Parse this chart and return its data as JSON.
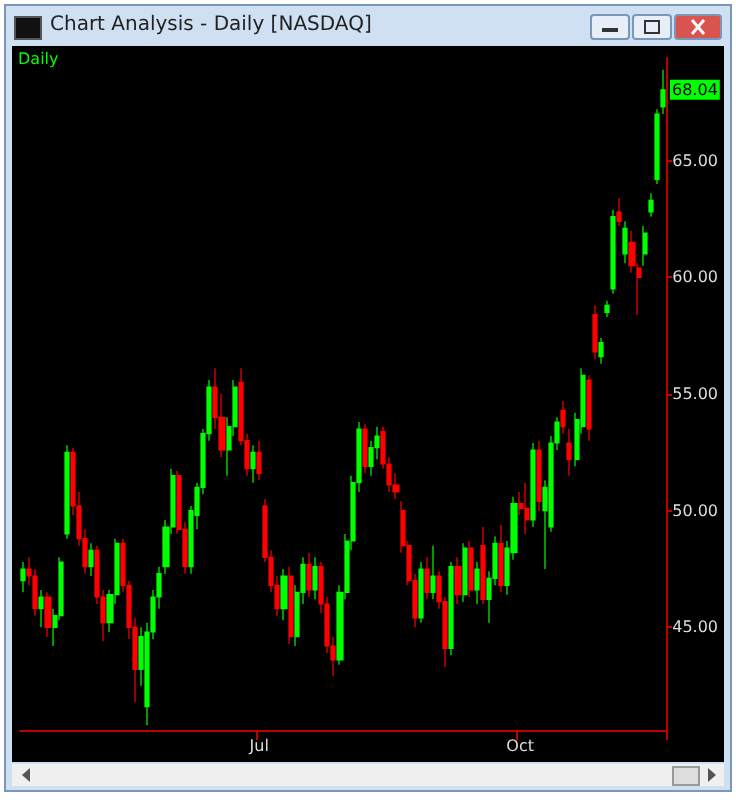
{
  "chart_data": {
    "type": "candlestick",
    "title": "Chart Analysis - Daily [NASDAQ]",
    "subtitle": "Daily",
    "colors": [
      "#00ff00",
      "#ff0000",
      "#ff0000",
      "#00ff00",
      "#ff0000",
      "#00ff00",
      "#00ff00",
      "#00ff00",
      "#ff0000",
      "#ff0000",
      "#ff0000",
      "#00ff00",
      "#ff0000",
      "#ff0000",
      "#00ff00",
      "#00ff00",
      "#ff0000",
      "#ff0000",
      "#ff0000",
      "#00ff00",
      "#00ff00",
      "#00ff00",
      "#00ff00",
      "#00ff00",
      "#00ff00",
      "#ff0000",
      "#ff0000",
      "#00ff00",
      "#00ff00",
      "#00ff00",
      "#00ff00",
      "#ff0000",
      "#ff0000",
      "#00ff00",
      "#00ff00",
      "#ff0000",
      "#ff0000",
      "#00ff00",
      "#ff0000",
      "#ff0000",
      "#ff0000",
      "#ff0000",
      "#00ff00",
      "#ff0000",
      "#00ff00",
      "#00ff00",
      "#ff0000",
      "#00ff00",
      "#ff0000",
      "#ff0000",
      "#ff0000",
      "#00ff00",
      "#00ff00",
      "#00ff00",
      "#00ff00",
      "#ff0000",
      "#00ff00",
      "#00ff00",
      "#ff0000",
      "#ff0000",
      "#ff0000",
      "#ff0000",
      "#ff0000",
      "#ff0000",
      "#00ff00",
      "#ff0000",
      "#00ff00",
      "#ff0000",
      "#ff0000",
      "#00ff00",
      "#ff0000",
      "#00ff00",
      "#ff0000",
      "#00ff00",
      "#ff0000",
      "#00ff00",
      "#00ff00",
      "#ff0000",
      "#00ff00",
      "#00ff00",
      "#ff0000",
      "#ff0000",
      "#00ff00",
      "#ff0000",
      "#00ff00",
      "#00ff00",
      "#00ff00",
      "#ff0000",
      "#ff0000",
      "#00ff00",
      "#00ff00",
      "#ff0000",
      "#ff0000",
      "#00ff00",
      "#00ff00",
      "#00ff00",
      "#ff0000",
      "#00ff00",
      "#ff0000",
      "#ff0000",
      "#00ff00",
      "#00ff00",
      "#00ff00",
      "#00ff00"
    ],
    "categories": [
      null,
      null,
      null,
      null,
      null,
      null,
      null,
      null,
      null,
      null,
      null,
      null,
      null,
      null,
      null,
      null,
      null,
      null,
      null,
      null,
      null,
      null,
      null,
      null,
      null,
      null,
      null,
      null,
      null,
      null,
      null,
      null,
      null,
      null,
      null,
      null,
      null,
      null,
      "Jul",
      null,
      null,
      null,
      null,
      null,
      null,
      null,
      null,
      null,
      null,
      null,
      null,
      null,
      null,
      null,
      null,
      null,
      null,
      null,
      null,
      null,
      null,
      null,
      null,
      null,
      null,
      null,
      null,
      null,
      null,
      null,
      null,
      null,
      null,
      null,
      null,
      null,
      null,
      null,
      null,
      null,
      "Oct",
      null,
      null,
      null,
      null,
      null,
      null,
      null,
      null,
      null,
      null,
      null,
      null,
      null,
      null,
      null,
      null,
      null,
      null,
      null,
      null,
      null,
      null,
      null
    ],
    "ohlc": [
      [
        47.0,
        47.8,
        46.5,
        47.5
      ],
      [
        47.5,
        48.0,
        46.8,
        47.2
      ],
      [
        47.2,
        47.5,
        45.5,
        45.8
      ],
      [
        45.8,
        46.6,
        45.0,
        46.3
      ],
      [
        46.3,
        46.5,
        44.6,
        45.0
      ],
      [
        45.0,
        45.8,
        44.2,
        45.5
      ],
      [
        45.5,
        48.0,
        45.3,
        47.8
      ],
      [
        49.0,
        52.8,
        48.8,
        52.5
      ],
      [
        52.5,
        52.7,
        49.8,
        50.2
      ],
      [
        50.2,
        50.8,
        48.5,
        48.8
      ],
      [
        48.8,
        49.2,
        47.3,
        47.6
      ],
      [
        47.6,
        48.6,
        47.2,
        48.3
      ],
      [
        48.3,
        48.5,
        46.0,
        46.3
      ],
      [
        46.3,
        46.6,
        44.4,
        45.2
      ],
      [
        45.2,
        46.6,
        44.8,
        46.4
      ],
      [
        46.4,
        48.8,
        46.0,
        48.6
      ],
      [
        48.6,
        48.8,
        46.5,
        46.8
      ],
      [
        46.8,
        47.0,
        44.5,
        45.0
      ],
      [
        45.0,
        45.4,
        41.8,
        43.2
      ],
      [
        43.2,
        45.0,
        42.5,
        44.6
      ],
      [
        41.6,
        45.2,
        40.8,
        44.8
      ],
      [
        44.8,
        46.6,
        44.5,
        46.3
      ],
      [
        46.3,
        47.6,
        45.8,
        47.3
      ],
      [
        47.6,
        49.6,
        47.3,
        49.3
      ],
      [
        49.3,
        51.8,
        49.0,
        51.5
      ],
      [
        51.5,
        51.7,
        49.0,
        49.2
      ],
      [
        49.2,
        49.5,
        47.3,
        47.6
      ],
      [
        47.6,
        50.2,
        47.3,
        50.0
      ],
      [
        49.8,
        51.2,
        49.2,
        51.0
      ],
      [
        51.0,
        53.5,
        50.7,
        53.3
      ],
      [
        53.3,
        55.6,
        53.0,
        55.3
      ],
      [
        55.3,
        56.1,
        53.5,
        54.0
      ],
      [
        54.0,
        55.0,
        52.3,
        52.6
      ],
      [
        52.6,
        54.0,
        51.5,
        53.6
      ],
      [
        53.6,
        55.6,
        53.2,
        55.3
      ],
      [
        55.5,
        56.1,
        52.8,
        53.0
      ],
      [
        53.0,
        53.3,
        51.5,
        51.8
      ],
      [
        51.8,
        52.8,
        51.2,
        52.5
      ],
      [
        52.5,
        53.0,
        51.3,
        51.6
      ],
      [
        50.2,
        50.5,
        47.8,
        48.0
      ],
      [
        48.0,
        48.3,
        46.5,
        46.8
      ],
      [
        46.8,
        47.2,
        45.5,
        45.8
      ],
      [
        45.8,
        47.5,
        45.3,
        47.2
      ],
      [
        47.2,
        47.6,
        44.3,
        44.6
      ],
      [
        44.6,
        46.8,
        44.2,
        46.5
      ],
      [
        46.5,
        48.0,
        46.0,
        47.7
      ],
      [
        47.7,
        48.2,
        46.3,
        46.6
      ],
      [
        46.6,
        48.0,
        46.2,
        47.6
      ],
      [
        47.6,
        47.8,
        45.6,
        46.0
      ],
      [
        46.0,
        46.3,
        43.9,
        44.2
      ],
      [
        44.2,
        44.6,
        42.9,
        43.6
      ],
      [
        43.6,
        46.8,
        43.4,
        46.5
      ],
      [
        46.5,
        49.0,
        46.2,
        48.7
      ],
      [
        48.7,
        51.5,
        48.3,
        51.2
      ],
      [
        51.2,
        53.8,
        50.8,
        53.5
      ],
      [
        53.5,
        53.7,
        51.6,
        51.9
      ],
      [
        51.9,
        53.0,
        51.5,
        52.7
      ],
      [
        52.7,
        53.6,
        52.2,
        53.2
      ],
      [
        53.4,
        53.6,
        51.8,
        52.0
      ],
      [
        52.0,
        52.3,
        50.8,
        51.1
      ],
      [
        51.1,
        51.6,
        50.5,
        50.8
      ],
      [
        50.0,
        50.4,
        48.2,
        48.5
      ],
      [
        48.5,
        48.7,
        46.8,
        47.0
      ],
      [
        47.0,
        47.3,
        45.0,
        45.4
      ],
      [
        45.4,
        47.8,
        45.2,
        47.5
      ],
      [
        47.5,
        48.0,
        46.2,
        46.5
      ],
      [
        46.5,
        48.5,
        46.2,
        47.2
      ],
      [
        47.2,
        47.4,
        45.8,
        46.1
      ],
      [
        46.1,
        46.3,
        43.3,
        44.1
      ],
      [
        44.1,
        47.8,
        43.8,
        47.6
      ],
      [
        47.6,
        48.0,
        46.0,
        46.4
      ],
      [
        46.4,
        48.6,
        46.1,
        48.4
      ],
      [
        48.4,
        48.7,
        46.3,
        46.6
      ],
      [
        46.6,
        47.8,
        46.0,
        47.5
      ],
      [
        48.5,
        49.3,
        46.0,
        46.2
      ],
      [
        46.2,
        47.4,
        45.2,
        47.1
      ],
      [
        47.1,
        48.9,
        46.8,
        48.6
      ],
      [
        48.6,
        49.4,
        46.5,
        46.8
      ],
      [
        46.8,
        48.7,
        46.4,
        48.4
      ],
      [
        48.2,
        50.6,
        47.9,
        50.3
      ],
      [
        50.3,
        50.8,
        49.8,
        50.1
      ],
      [
        50.1,
        51.2,
        49.0,
        49.6
      ],
      [
        49.6,
        52.9,
        49.3,
        52.6
      ],
      [
        52.6,
        53.0,
        50.0,
        50.4
      ],
      [
        50.0,
        51.3,
        47.5,
        51.0
      ],
      [
        49.3,
        53.2,
        49.1,
        52.9
      ],
      [
        52.9,
        54.0,
        52.6,
        53.8
      ],
      [
        54.3,
        54.7,
        53.3,
        53.6
      ],
      [
        52.9,
        53.5,
        51.5,
        52.2
      ],
      [
        52.2,
        54.2,
        51.9,
        53.9
      ],
      [
        53.6,
        56.1,
        53.3,
        55.8
      ],
      [
        55.6,
        55.8,
        53.0,
        53.5
      ],
      [
        58.4,
        58.8,
        56.5,
        56.8
      ],
      [
        56.6,
        57.4,
        56.3,
        57.2
      ],
      [
        58.5,
        59.0,
        58.3,
        58.8
      ],
      [
        59.5,
        62.9,
        59.3,
        62.6
      ],
      [
        62.8,
        63.4,
        62.2,
        62.4
      ],
      [
        61.0,
        62.4,
        60.6,
        62.1
      ],
      [
        61.5,
        62.0,
        60.2,
        60.5
      ],
      [
        60.4,
        60.6,
        58.4,
        60.0
      ],
      [
        61.0,
        62.2,
        60.5,
        61.9
      ],
      [
        62.8,
        63.6,
        62.6,
        63.3
      ],
      [
        64.2,
        67.2,
        64.0,
        67.0
      ],
      [
        67.3,
        68.9,
        67.0,
        68.04
      ]
    ],
    "ylim": [
      40.6,
      69.4
    ],
    "yticks": [
      {
        "value": 45,
        "label": "45.00"
      },
      {
        "value": 50,
        "label": "50.00"
      },
      {
        "value": 55,
        "label": "55.00"
      },
      {
        "value": 60,
        "label": "60.00"
      },
      {
        "value": 65,
        "label": "65.00"
      }
    ],
    "annotations": [
      {
        "text": "68.04",
        "y": 68.04
      }
    ],
    "grid": false
  }
}
